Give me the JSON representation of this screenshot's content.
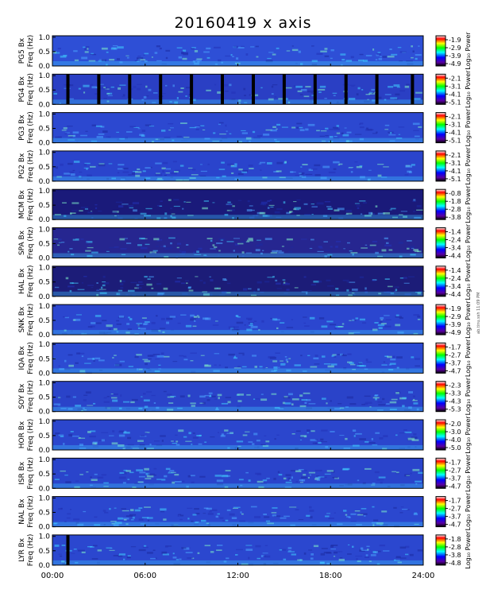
{
  "title": "20160419 x axis",
  "side_stamp": "ab.tinu.ssh 11:09 PM",
  "chart_data": {
    "type": "heatmap",
    "title": "20160419 x axis",
    "xlabel": "",
    "x_ticks": [
      "00:00",
      "06:00",
      "12:00",
      "18:00",
      "24:00"
    ],
    "xlim_hours": [
      0,
      24
    ],
    "ylim": [
      0,
      1.0
    ],
    "y_ticks": [
      "0.0",
      "0.5",
      "1.0"
    ],
    "colorbar_label": "Log₁₀ Power",
    "panels": [
      {
        "station": "PG5",
        "ylabel": "PG5 Bx Freq (Hz)",
        "cbar_ticks": [
          "-1.9",
          "-2.9",
          "-3.9",
          "-4.9"
        ],
        "cbar_range": [
          -4.9,
          -1.9
        ],
        "background": "#2e4fd6",
        "black_gaps_hours": []
      },
      {
        "station": "PG4",
        "ylabel": "PG4 Bx Freq (Hz)",
        "cbar_ticks": [
          "-2.1",
          "-3.1",
          "-4.1",
          "-5.1"
        ],
        "cbar_range": [
          -5.1,
          -2.1
        ],
        "background": "#2a3fc4",
        "black_gaps_hours": [
          1.0,
          3.0,
          5.0,
          7.0,
          9.0,
          11.0,
          13.0,
          15.0,
          17.0,
          19.0,
          21.0,
          23.3
        ]
      },
      {
        "station": "PG3",
        "ylabel": "PG3 Bx Freq (Hz)",
        "cbar_ticks": [
          "-2.1",
          "-3.1",
          "-4.1",
          "-5.1"
        ],
        "cbar_range": [
          -5.1,
          -2.1
        ],
        "background": "#2c48d0",
        "black_gaps_hours": []
      },
      {
        "station": "PG2",
        "ylabel": "PG2 Bx Freq (Hz)",
        "cbar_ticks": [
          "-2.1",
          "-3.1",
          "-4.1",
          "-5.1"
        ],
        "cbar_range": [
          -5.1,
          -2.1
        ],
        "background": "#2a44cc",
        "black_gaps_hours": []
      },
      {
        "station": "MCM",
        "ylabel": "MCM Bx Freq (Hz)",
        "cbar_ticks": [
          "-0.8",
          "-1.8",
          "-2.8",
          "-3.8"
        ],
        "cbar_range": [
          -3.8,
          -0.8
        ],
        "background": "#1a1a7a",
        "black_gaps_hours": []
      },
      {
        "station": "SPA",
        "ylabel": "SPA Bx Freq (Hz)",
        "cbar_ticks": [
          "-1.4",
          "-2.4",
          "-3.4",
          "-4.4"
        ],
        "cbar_range": [
          -4.4,
          -1.4
        ],
        "background": "#262690",
        "black_gaps_hours": []
      },
      {
        "station": "HAL",
        "ylabel": "HAL Bx Freq (Hz)",
        "cbar_ticks": [
          "-1.4",
          "-2.4",
          "-3.4",
          "-4.4"
        ],
        "cbar_range": [
          -4.4,
          -1.4
        ],
        "background": "#1c1c78",
        "black_gaps_hours": []
      },
      {
        "station": "SNK",
        "ylabel": "SNK Bx Freq (Hz)",
        "cbar_ticks": [
          "-1.9",
          "-2.9",
          "-3.9",
          "-4.9"
        ],
        "cbar_range": [
          -4.9,
          -1.9
        ],
        "background": "#2b46cf",
        "black_gaps_hours": []
      },
      {
        "station": "IQA",
        "ylabel": "IQA Bx Freq (Hz)",
        "cbar_ticks": [
          "-1.7",
          "-2.7",
          "-3.7",
          "-4.7"
        ],
        "cbar_range": [
          -4.7,
          -1.7
        ],
        "background": "#2c4ad2",
        "black_gaps_hours": []
      },
      {
        "station": "SOY",
        "ylabel": "SOY Bx Freq (Hz)",
        "cbar_ticks": [
          "-2.3",
          "-3.3",
          "-4.3",
          "-5.3"
        ],
        "cbar_range": [
          -5.3,
          -2.3
        ],
        "background": "#2a43c9",
        "black_gaps_hours": []
      },
      {
        "station": "HOR",
        "ylabel": "HOR Bx Freq (Hz)",
        "cbar_ticks": [
          "-2.0",
          "-3.0",
          "-4.0",
          "-5.0"
        ],
        "cbar_range": [
          -5.0,
          -2.0
        ],
        "background": "#2b46cd",
        "black_gaps_hours": []
      },
      {
        "station": "ISR",
        "ylabel": "ISR Bx Freq (Hz)",
        "cbar_ticks": [
          "-1.7",
          "-2.7",
          "-3.7",
          "-4.7"
        ],
        "cbar_range": [
          -4.7,
          -1.7
        ],
        "background": "#2a44cb",
        "black_gaps_hours": []
      },
      {
        "station": "NAL",
        "ylabel": "NAL Bx Freq (Hz)",
        "cbar_ticks": [
          "-1.7",
          "-2.7",
          "-3.7",
          "-4.7"
        ],
        "cbar_range": [
          -4.7,
          -1.7
        ],
        "background": "#2b47cf",
        "black_gaps_hours": []
      },
      {
        "station": "LYR",
        "ylabel": "LYR Bx Freq (Hz)",
        "cbar_ticks": [
          "-1.8",
          "-2.8",
          "-3.8",
          "-4.8"
        ],
        "cbar_range": [
          -4.8,
          -1.8
        ],
        "background": "#2b47cf",
        "black_gaps_hours": [
          1.0
        ]
      }
    ]
  },
  "colors": {
    "colormap": [
      "#ffffff",
      "#ff0000",
      "#ffff00",
      "#00ff00",
      "#00ffff",
      "#0000ff",
      "#5a00a0",
      "#000000"
    ],
    "frame": "#000000"
  }
}
